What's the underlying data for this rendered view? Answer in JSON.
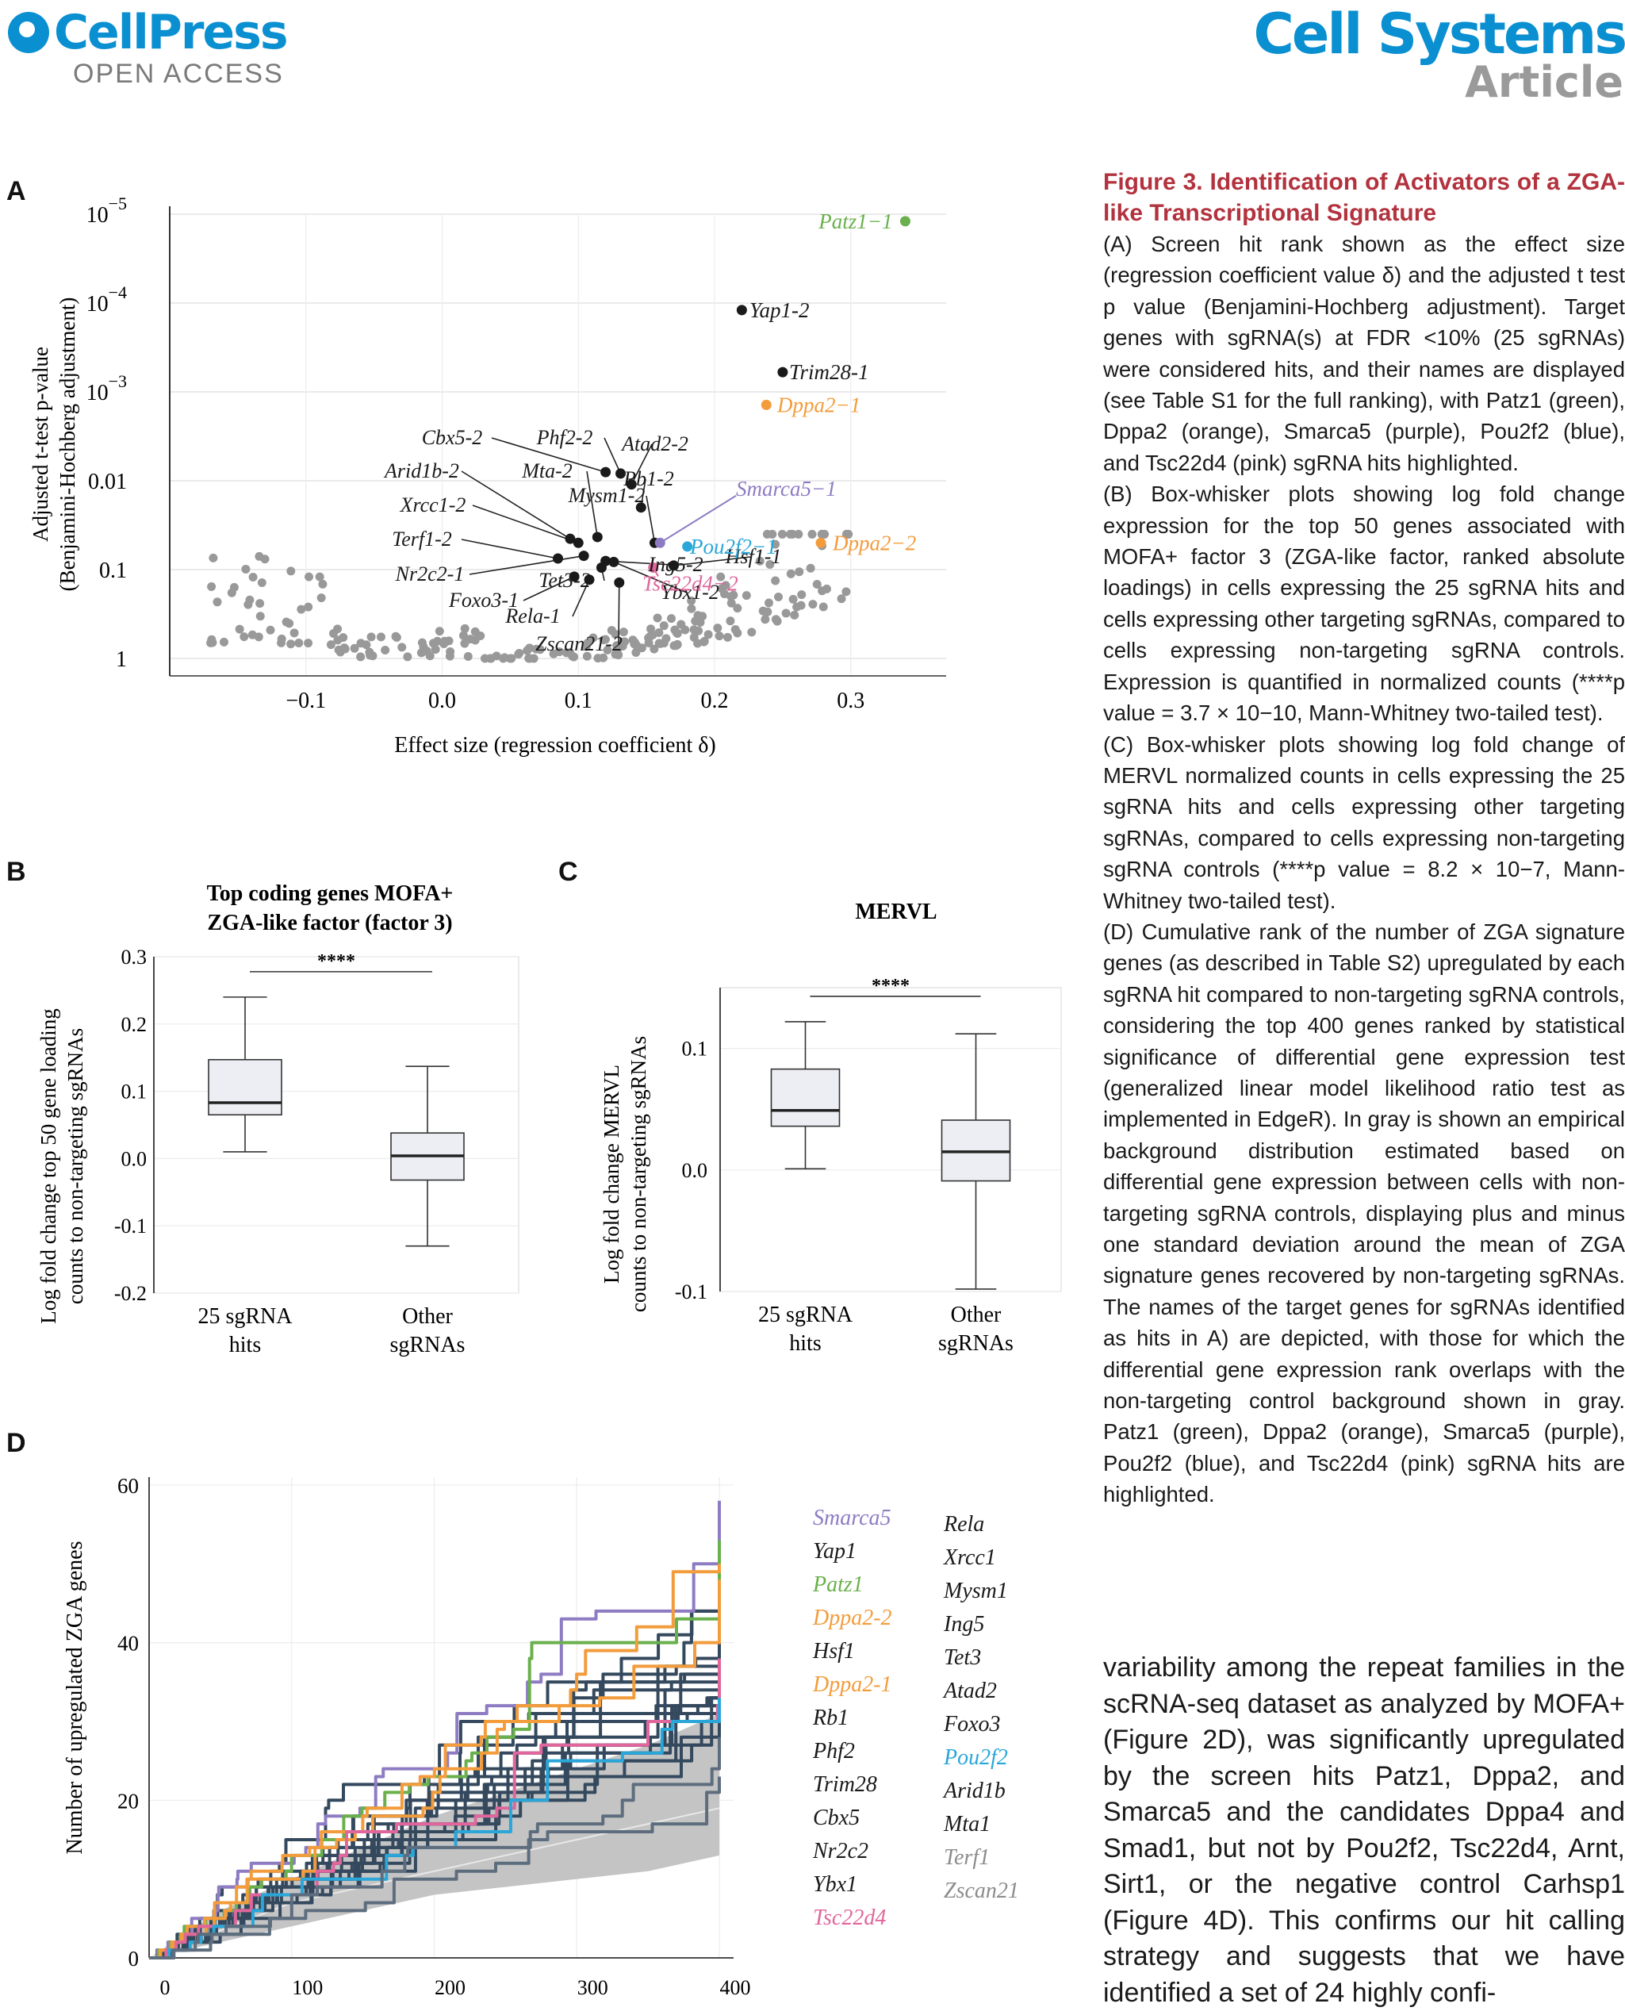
{
  "header": {
    "publisher": "CellPress",
    "access": "OPEN ACCESS",
    "journal": "Cell Systems",
    "article_type": "Article"
  },
  "panels": {
    "a": "A",
    "b": "B",
    "c": "C",
    "d": "D"
  },
  "colors": {
    "green": "#6ab04c",
    "orange": "#f39c3c",
    "purple": "#8e7cc3",
    "blue": "#2aa6d8",
    "pink": "#e0669c",
    "gray": "#8c8c8c",
    "dark": "#1a1a1a",
    "line": "#34495e",
    "link": "#0aa0d8",
    "title": "#b2323e"
  },
  "chart_data": [
    {
      "type": "scatter",
      "panel": "A",
      "xlabel": "Effect size (regression coefficient δ)",
      "ylabel_line1": "Adjusted t-test p-value",
      "ylabel_line2": "(Benjamini-Hochberg adjustment)",
      "y_scale": "log (inverted)",
      "xlim": [
        -0.2,
        0.37
      ],
      "ylim": [
        1e-05,
        1
      ],
      "x_ticks": [
        "−0.1",
        "0.0",
        "0.1",
        "0.2",
        "0.3"
      ],
      "x_tick_values": [
        -0.1,
        0.0,
        0.1,
        0.2,
        0.3
      ],
      "y_ticks": [
        {
          "label": "10",
          "sup": "−5",
          "value": 1e-05
        },
        {
          "label": "10",
          "sup": "−4",
          "value": 0.0001
        },
        {
          "label": "10",
          "sup": "−3",
          "value": 0.001
        },
        {
          "label": "0.01",
          "sup": "",
          "value": 0.01
        },
        {
          "label": "0.1",
          "sup": "",
          "value": 0.1
        },
        {
          "label": "1",
          "sup": "",
          "value": 1
        }
      ],
      "highlighted_points": [
        {
          "label": "Patz1−1",
          "x": 0.34,
          "p": 1.2e-05,
          "color": "green"
        },
        {
          "label": "Yap1-2",
          "x": 0.22,
          "p": 0.00012,
          "color": "dark"
        },
        {
          "label": "Trim28-1",
          "x": 0.25,
          "p": 0.0006,
          "color": "dark"
        },
        {
          "label": "Dppa2−1",
          "x": 0.238,
          "p": 0.0014,
          "color": "orange"
        },
        {
          "label": "Dppa2−2",
          "x": 0.278,
          "p": 0.05,
          "color": "orange"
        },
        {
          "label": "Smarca5−1",
          "x": 0.16,
          "p": 0.05,
          "color": "purple"
        },
        {
          "label": "Pou2f2−1",
          "x": 0.18,
          "p": 0.055,
          "color": "blue"
        },
        {
          "label": "Tsc22d4−2",
          "x": 0.155,
          "p": 0.095,
          "color": "pink"
        }
      ],
      "hit_labels": [
        "Cbx5-2",
        "Phf2-2",
        "Atad2-2",
        "Arid1b-2",
        "Mta-2",
        "Rb1-2",
        "Mysm1-2",
        "Xrcc1-2",
        "Terf1-2",
        "Ing5-2",
        "Hsf1-1",
        "Nr2c2-1",
        "Tet3-2",
        "Ybx1-2",
        "Foxo3-1",
        "Rela-1",
        "Zscan21-2"
      ]
    },
    {
      "type": "box",
      "panel": "B",
      "title_line1": "Top coding genes MOFA+",
      "title_line2": "ZGA-like factor (factor 3)",
      "ylabel_line1": "Log fold change top 50 gene loading",
      "ylabel_line2": "counts to non-targeting sgRNAs",
      "ylim": [
        -0.2,
        0.3
      ],
      "y_ticks": [
        "0.3",
        "0.2",
        "0.1",
        "0.0",
        "-0.1",
        "-0.2"
      ],
      "y_tick_values": [
        0.3,
        0.2,
        0.1,
        0.0,
        -0.1,
        -0.2
      ],
      "significance": "****",
      "categories": [
        [
          "25 sgRNA",
          "hits"
        ],
        [
          "Other",
          "sgRNAs"
        ]
      ],
      "boxes": [
        {
          "min": 0.01,
          "q1": 0.065,
          "median": 0.083,
          "q3": 0.147,
          "max": 0.24
        },
        {
          "min": -0.13,
          "q1": -0.032,
          "median": 0.004,
          "q3": 0.038,
          "max": 0.137
        }
      ]
    },
    {
      "type": "box",
      "panel": "C",
      "title": "MERVL",
      "ylabel_line1": "Log fold change MERVL",
      "ylabel_line2": "counts to non-targeting sgRNAs",
      "ylim": [
        -0.1,
        0.15
      ],
      "y_ticks": [
        "0.1",
        "0.0",
        "-0.1"
      ],
      "y_tick_values": [
        0.1,
        0.0,
        -0.1
      ],
      "significance": "****",
      "categories": [
        [
          "25 sgRNA",
          "hits"
        ],
        [
          "Other",
          "sgRNAs"
        ]
      ],
      "boxes": [
        {
          "min": 0.001,
          "q1": 0.036,
          "median": 0.049,
          "q3": 0.083,
          "max": 0.122
        },
        {
          "min": -0.098,
          "q1": -0.009,
          "median": 0.015,
          "q3": 0.041,
          "max": 0.112
        }
      ]
    },
    {
      "type": "line",
      "panel": "D",
      "ylabel": "Number of upregulated ZGA genes",
      "xlim": [
        0,
        410
      ],
      "ylim": [
        0,
        61
      ],
      "x_ticks": [
        "0",
        "100",
        "200",
        "300",
        "400"
      ],
      "x_tick_values": [
        0,
        100,
        200,
        300,
        400
      ],
      "y_ticks": [
        "0",
        "20",
        "40",
        "60"
      ],
      "y_tick_values": [
        0,
        20,
        40,
        60
      ],
      "background_band": {
        "x": [
          0,
          50,
          100,
          150,
          200,
          250,
          300,
          350,
          400
        ],
        "lower": [
          0,
          2,
          4,
          6,
          8,
          9,
          10,
          11,
          13
        ],
        "upper": [
          0,
          6,
          10,
          14,
          18,
          21,
          24,
          27,
          31
        ]
      },
      "background_mean": {
        "x": [
          0,
          100,
          200,
          300,
          400
        ],
        "y": [
          0,
          7,
          11,
          15,
          19
        ]
      },
      "series": [
        {
          "name": "Smarca5",
          "color": "purple",
          "final": 58
        },
        {
          "name": "Yap1",
          "color": "dark",
          "final": 54
        },
        {
          "name": "Patz1",
          "color": "green",
          "final": 53
        },
        {
          "name": "Dppa2-2",
          "color": "orange",
          "final": 50
        },
        {
          "name": "Hsf1",
          "color": "dark",
          "final": 49
        },
        {
          "name": "Dppa2-1",
          "color": "orange",
          "final": 48
        },
        {
          "name": "Rb1",
          "color": "dark",
          "final": 45
        },
        {
          "name": "Phf2",
          "color": "dark",
          "final": 44
        },
        {
          "name": "Trim28",
          "color": "dark",
          "final": 42
        },
        {
          "name": "Cbx5",
          "color": "dark",
          "final": 41
        },
        {
          "name": "Nr2c2",
          "color": "dark",
          "final": 40
        },
        {
          "name": "Ybx1",
          "color": "dark",
          "final": 39
        },
        {
          "name": "Tsc22d4",
          "color": "pink",
          "final": 38
        },
        {
          "name": "Rela",
          "color": "dark",
          "final": 38
        },
        {
          "name": "Xrcc1",
          "color": "dark",
          "final": 37
        },
        {
          "name": "Mysm1",
          "color": "dark",
          "final": 37
        },
        {
          "name": "Ing5",
          "color": "dark",
          "final": 36
        },
        {
          "name": "Tet3",
          "color": "dark",
          "final": 35
        },
        {
          "name": "Atad2",
          "color": "dark",
          "final": 35
        },
        {
          "name": "Foxo3",
          "color": "dark",
          "final": 34
        },
        {
          "name": "Pou2f2",
          "color": "blue",
          "final": 33
        },
        {
          "name": "Arid1b",
          "color": "dark",
          "final": 32
        },
        {
          "name": "Mta1",
          "color": "dark",
          "final": 30
        },
        {
          "name": "Terf1",
          "color": "gray",
          "final": 28
        },
        {
          "name": "Zscan21",
          "color": "gray",
          "final": 23
        }
      ],
      "legend_col1": [
        {
          "name": "Smarca5",
          "color": "purple"
        },
        {
          "name": "Yap1",
          "color": "dark"
        },
        {
          "name": "Patz1",
          "color": "green"
        },
        {
          "name": "Dppa2-2",
          "color": "orange"
        },
        {
          "name": "Hsf1",
          "color": "dark"
        },
        {
          "name": "Dppa2-1",
          "color": "orange"
        },
        {
          "name": "Rb1",
          "color": "dark"
        },
        {
          "name": "Phf2",
          "color": "dark"
        },
        {
          "name": "Trim28",
          "color": "dark"
        },
        {
          "name": "Cbx5",
          "color": "dark"
        },
        {
          "name": "Nr2c2",
          "color": "dark"
        },
        {
          "name": "Ybx1",
          "color": "dark"
        },
        {
          "name": "Tsc22d4",
          "color": "pink"
        }
      ],
      "legend_col2": [
        {
          "name": "Rela",
          "color": "dark"
        },
        {
          "name": "Xrcc1",
          "color": "dark"
        },
        {
          "name": "Mysm1",
          "color": "dark"
        },
        {
          "name": "Ing5",
          "color": "dark"
        },
        {
          "name": "Tet3",
          "color": "dark"
        },
        {
          "name": "Atad2",
          "color": "dark"
        },
        {
          "name": "Foxo3",
          "color": "dark"
        },
        {
          "name": "Pou2f2",
          "color": "blue"
        },
        {
          "name": "Arid1b",
          "color": "dark"
        },
        {
          "name": "Mta1",
          "color": "dark"
        },
        {
          "name": "Terf1",
          "color": "gray"
        },
        {
          "name": "Zscan21",
          "color": "gray"
        }
      ]
    }
  ],
  "caption": {
    "title": "Figure 3. Identification of Activators of a ZGA-like Transcriptional Signature",
    "paragraphs": [
      "(A) Screen hit rank shown as the effect size (regression coefficient value δ) and the adjusted t test p value (Benjamini-Hochberg adjustment). Target genes with sgRNA(s) at FDR <10% (25 sgRNAs) were considered hits, and their names are displayed (see Table S1 for the full ranking), with Patz1 (green), Dppa2 (orange), Smarca5 (purple), Pou2f2 (blue), and Tsc22d4 (pink) sgRNA hits highlighted.",
      "(B) Box-whisker plots showing log fold change expression for the top 50 genes associated with MOFA+ factor 3 (ZGA-like factor, ranked absolute loadings) in cells expressing the 25 sgRNA hits and cells expressing other targeting sgRNAs, compared to cells expressing non-targeting sgRNA controls. Expression is quantified in normalized counts (****p value = 3.7 × 10−10, Mann-Whitney two-tailed test).",
      "(C) Box-whisker plots showing log fold change of MERVL normalized counts in cells expressing the 25 sgRNA hits and cells expressing other targeting sgRNAs, compared to cells expressing non-targeting sgRNA controls (****p value = 8.2 × 10−7, Mann-Whitney two-tailed test).",
      "(D) Cumulative rank of the number of ZGA signature genes (as described in Table S2) upregulated by each sgRNA hit compared to non-targeting sgRNA controls, considering the top 400 genes ranked by statistical significance of differential gene expression test (generalized linear model likelihood ratio test as implemented in EdgeR). In gray is shown an empirical background distribution estimated based on differential gene expression between cells with non-targeting sgRNA controls, displaying plus and minus one standard deviation around the mean of ZGA signature genes recovered by non-targeting sgRNAs. The names of the target genes for sgRNAs identified as hits in A) are depicted, with those for which the differential gene expression rank overlaps with the non-targeting control background shown in gray. Patz1 (green), Dppa2 (orange), Smarca5 (purple), Pou2f2 (blue), and Tsc22d4 (pink) sgRNA hits are highlighted."
    ]
  },
  "body_text": "variability among the repeat families in the scRNA-seq dataset as analyzed by MOFA+ (Figure 2D), was significantly upregulated by the screen hits Patz1, Dppa2, and Smarca5 and the candidates Dppa4 and Smad1, but not by Pou2f2, Tsc22d4, Arnt, Sirt1, or the negative control Carhsp1 (Figure 4D). This confirms our hit calling strategy and suggests that we have identified a set of 24 highly confi-"
}
